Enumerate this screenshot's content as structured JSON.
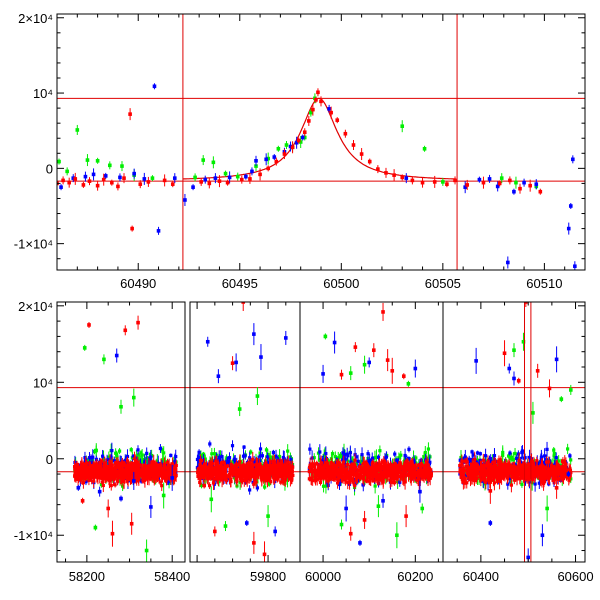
{
  "chart_data": [
    {
      "type": "scatter",
      "panel": "top",
      "xlim": [
        60486,
        60512
      ],
      "ylim": [
        -13500,
        20500
      ],
      "x_ticks": [
        60490,
        60495,
        60500,
        60505,
        60510
      ],
      "y_ticks": [
        {
          "value": 20000,
          "label": "2×10⁴"
        },
        {
          "value": 10000,
          "label": "10⁴"
        },
        {
          "value": 0,
          "label": "0"
        },
        {
          "value": -10000,
          "label": "-1×10⁴"
        }
      ],
      "hlines": [
        9300,
        -1700
      ],
      "vlines": [
        60492.2,
        60505.7
      ],
      "model_curve": {
        "baseline": -1700,
        "peak_x": 60498.9,
        "peak_y": 9300,
        "width": 1.1,
        "x_range": [
          60492.2,
          60505.7
        ]
      },
      "series": [
        {
          "color": "#ff0000",
          "points": [
            [
              60486.0,
              -2000
            ],
            [
              60486.3,
              -1600
            ],
            [
              60486.6,
              -1900
            ],
            [
              60486.9,
              -1400
            ],
            [
              60487.3,
              -2200
            ],
            [
              60487.6,
              -1700
            ],
            [
              60488.0,
              -2300
            ],
            [
              60488.3,
              -1500
            ],
            [
              60488.7,
              -1900
            ],
            [
              60489.0,
              -2400
            ],
            [
              60489.3,
              -1300
            ],
            [
              60489.6,
              7200
            ],
            [
              60489.7,
              -8000
            ],
            [
              60490.1,
              -2100
            ],
            [
              60490.5,
              -1800
            ],
            [
              60491.3,
              -1600
            ],
            [
              60491.7,
              -2100
            ],
            [
              60493.1,
              -1800
            ],
            [
              60493.5,
              -2000
            ],
            [
              60494.0,
              -1700
            ],
            [
              60494.4,
              -1900
            ],
            [
              60495.1,
              -1500
            ],
            [
              60495.5,
              -1400
            ],
            [
              60496.0,
              -800
            ],
            [
              60496.4,
              0
            ],
            [
              60496.8,
              900
            ],
            [
              60497.2,
              1900
            ],
            [
              60497.6,
              2800
            ],
            [
              60497.9,
              3700
            ],
            [
              60498.2,
              4800
            ],
            [
              60498.4,
              6300
            ],
            [
              60498.6,
              7800
            ],
            [
              60498.75,
              9100
            ],
            [
              60498.85,
              10100
            ],
            [
              60499.0,
              8900
            ],
            [
              60499.5,
              7400
            ],
            [
              60499.8,
              6400
            ],
            [
              60500.2,
              4600
            ],
            [
              60500.6,
              3100
            ],
            [
              60501.0,
              1900
            ],
            [
              60501.4,
              900
            ],
            [
              60501.8,
              -100
            ],
            [
              60502.2,
              -600
            ],
            [
              60502.6,
              -900
            ],
            [
              60503.0,
              -1200
            ],
            [
              60503.5,
              -1600
            ],
            [
              60504.0,
              -1900
            ],
            [
              60504.6,
              -1800
            ],
            [
              60505.2,
              -2100
            ],
            [
              60505.6,
              -1600
            ],
            [
              60506.2,
              -2200
            ],
            [
              60507.0,
              -1900
            ],
            [
              60507.8,
              -2000
            ],
            [
              60508.3,
              -1600
            ],
            [
              60508.8,
              -2700
            ],
            [
              60509.3,
              -2300
            ],
            [
              60509.8,
              -3100
            ]
          ]
        },
        {
          "color": "#0000ff",
          "points": [
            [
              60486.2,
              -2500
            ],
            [
              60486.8,
              -1300
            ],
            [
              60487.4,
              -1100
            ],
            [
              60487.8,
              -800
            ],
            [
              60488.4,
              -1000
            ],
            [
              60489.1,
              -1200
            ],
            [
              60489.8,
              -700
            ],
            [
              60490.3,
              -1400
            ],
            [
              60490.8,
              10900
            ],
            [
              60491.0,
              -8300
            ],
            [
              60491.8,
              -1300
            ],
            [
              60492.3,
              -4200
            ],
            [
              60492.7,
              -2500
            ],
            [
              60493.3,
              -1500
            ],
            [
              60493.8,
              -1300
            ],
            [
              60494.5,
              -1200
            ],
            [
              60495.3,
              -1100
            ],
            [
              60495.6,
              -400
            ],
            [
              60495.8,
              1000
            ],
            [
              60496.3,
              1200
            ],
            [
              60496.7,
              1500
            ],
            [
              60497.2,
              2200
            ],
            [
              60497.5,
              2900
            ],
            [
              60497.8,
              3400
            ],
            [
              60498.1,
              4100
            ],
            [
              60499.4,
              7900
            ],
            [
              60503.2,
              -1300
            ],
            [
              60506.1,
              -2500
            ],
            [
              60506.8,
              -1500
            ],
            [
              60507.3,
              -1400
            ],
            [
              60507.7,
              -2400
            ],
            [
              60508.2,
              -12500
            ],
            [
              60508.5,
              -3100
            ],
            [
              60509.0,
              -1900
            ],
            [
              60509.6,
              -2100
            ],
            [
              60511.2,
              -8000
            ],
            [
              60511.3,
              -5000
            ],
            [
              60511.4,
              1200
            ],
            [
              60511.5,
              -13000
            ]
          ]
        },
        {
          "color": "#00ee00",
          "points": [
            [
              60486.1,
              900
            ],
            [
              60486.5,
              -400
            ],
            [
              60487.0,
              5100
            ],
            [
              60487.5,
              1100
            ],
            [
              60488.0,
              1000
            ],
            [
              60488.6,
              400
            ],
            [
              60489.2,
              300
            ],
            [
              60489.8,
              -900
            ],
            [
              60490.7,
              -1300
            ],
            [
              60492.8,
              -1200
            ],
            [
              60493.2,
              1100
            ],
            [
              60493.7,
              800
            ],
            [
              60494.3,
              -700
            ],
            [
              60494.9,
              -1100
            ],
            [
              60495.8,
              300
            ],
            [
              60496.4,
              1300
            ],
            [
              60496.9,
              2600
            ],
            [
              60497.3,
              3100
            ],
            [
              60497.6,
              2800
            ],
            [
              60498.0,
              3500
            ],
            [
              60498.2,
              4100
            ],
            [
              60498.5,
              7400
            ],
            [
              60498.7,
              9300
            ],
            [
              60503.0,
              5600
            ],
            [
              60504.1,
              2600
            ],
            [
              60505.0,
              -1800
            ],
            [
              60507.9,
              -1300
            ],
            [
              60508.6,
              -1900
            ],
            [
              60509.6,
              -2400
            ]
          ]
        }
      ]
    },
    {
      "type": "scatter",
      "panel": "bottom",
      "x_ticks": [
        58200,
        58400,
        59800,
        60000,
        60200,
        60400,
        60600
      ],
      "y_ticks": [
        {
          "value": 20000,
          "label": "2×10⁴"
        },
        {
          "value": 10000,
          "label": "10⁴"
        },
        {
          "value": 0,
          "label": "0"
        },
        {
          "value": -10000,
          "label": "-1×10⁴"
        }
      ],
      "ylim": [
        -13500,
        20500
      ],
      "hlines": [
        9300,
        -1700
      ],
      "vlines": [
        60492.2,
        60505.7
      ],
      "seasons": [
        [
          58170,
          58410
        ],
        [
          59600,
          59870
        ],
        [
          59970,
          60235
        ],
        [
          60355,
          60590
        ]
      ],
      "outliers": [
        {
          "color": "#ff0000",
          "points": [
            [
              58205,
              17500
            ],
            [
              58290,
              16800
            ],
            [
              58320,
              17800
            ],
            [
              58250,
              -6500
            ],
            [
              58305,
              -8500
            ],
            [
              58260,
              -9800
            ],
            [
              58190,
              -5500
            ],
            [
              59650,
              -9500
            ],
            [
              59700,
              12500
            ],
            [
              59730,
              20500
            ],
            [
              59760,
              -11000
            ],
            [
              59790,
              -12500
            ],
            [
              59620,
              -3500
            ],
            [
              60070,
              14600
            ],
            [
              60110,
              14200
            ],
            [
              60130,
              19200
            ],
            [
              60140,
              12900
            ],
            [
              60150,
              11500
            ],
            [
              60175,
              10800
            ],
            [
              60040,
              11000
            ],
            [
              60060,
              -9800
            ],
            [
              60090,
              -8000
            ],
            [
              60180,
              -7500
            ],
            [
              60450,
              13800
            ],
            [
              60480,
              10200
            ],
            [
              60495,
              20500
            ],
            [
              60520,
              11500
            ],
            [
              60545,
              9200
            ],
            [
              60560,
              -3800
            ],
            [
              60420,
              -4200
            ]
          ]
        },
        {
          "color": "#0000ff",
          "points": [
            [
              58180,
              -3800
            ],
            [
              58230,
              -4300
            ],
            [
              58270,
              13500
            ],
            [
              58310,
              -2900
            ],
            [
              58350,
              -6300
            ],
            [
              58400,
              -2500
            ],
            [
              58280,
              -5200
            ],
            [
              59630,
              15300
            ],
            [
              59660,
              10800
            ],
            [
              59710,
              12600
            ],
            [
              59760,
              16300
            ],
            [
              59780,
              13300
            ],
            [
              59740,
              -8400
            ],
            [
              59820,
              -9500
            ],
            [
              59850,
              15800
            ],
            [
              60000,
              11100
            ],
            [
              60025,
              15200
            ],
            [
              60050,
              -6500
            ],
            [
              60080,
              -11000
            ],
            [
              60100,
              12600
            ],
            [
              60130,
              -5500
            ],
            [
              60200,
              11800
            ],
            [
              60210,
              -4300
            ],
            [
              60390,
              12800
            ],
            [
              60420,
              -8400
            ],
            [
              60460,
              11800
            ],
            [
              60470,
              10500
            ],
            [
              60500,
              -12900
            ],
            [
              60530,
              -10000
            ],
            [
              60560,
              13000
            ],
            [
              60585,
              -2000
            ]
          ]
        },
        {
          "color": "#00ee00",
          "points": [
            [
              58195,
              14500
            ],
            [
              58240,
              13000
            ],
            [
              58280,
              6800
            ],
            [
              58310,
              8000
            ],
            [
              58340,
              -12000
            ],
            [
              58380,
              -4800
            ],
            [
              58220,
              -9000
            ],
            [
              59680,
              -8800
            ],
            [
              59720,
              6500
            ],
            [
              59770,
              8200
            ],
            [
              59800,
              -7500
            ],
            [
              59640,
              -5300
            ],
            [
              60005,
              16000
            ],
            [
              60040,
              -8600
            ],
            [
              60060,
              11200
            ],
            [
              60090,
              12300
            ],
            [
              60120,
              -6200
            ],
            [
              60160,
              -10000
            ],
            [
              60185,
              9800
            ],
            [
              60215,
              -6500
            ],
            [
              60470,
              14200
            ],
            [
              60490,
              15300
            ],
            [
              60510,
              6000
            ],
            [
              60540,
              -6500
            ],
            [
              60570,
              7800
            ],
            [
              60590,
              9000
            ]
          ]
        }
      ]
    }
  ]
}
